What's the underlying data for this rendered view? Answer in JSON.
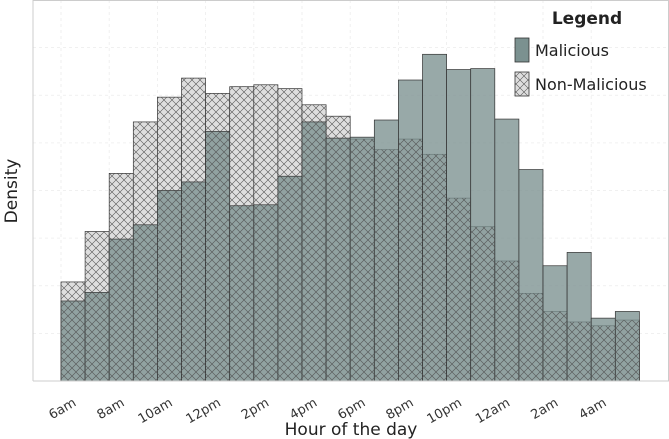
{
  "chart_data": {
    "type": "bar",
    "xlabel": "Hour of the day",
    "ylabel": "Density",
    "ylim": [
      0,
      0.04
    ],
    "grid": true,
    "legend_position": "top-right",
    "categories": [
      "6am",
      "7am",
      "8am",
      "9am",
      "10am",
      "11am",
      "12pm",
      "1pm",
      "2pm",
      "3pm",
      "4pm",
      "5pm",
      "6pm",
      "7pm",
      "8pm",
      "9pm",
      "10pm",
      "11pm",
      "12am",
      "1am",
      "2am",
      "3am",
      "4am",
      "5am"
    ],
    "tick_labels": [
      "6am",
      "8am",
      "10am",
      "12pm",
      "2pm",
      "4pm",
      "6pm",
      "8pm",
      "10pm",
      "12am",
      "2am",
      "4am"
    ],
    "colors": {
      "malicious": "#7b9190",
      "non_malicious": "#dedede",
      "edge": "#333333"
    },
    "legend": {
      "title": "Legend",
      "entries": [
        "Malicious",
        "Non-Malicious"
      ]
    },
    "series": [
      {
        "name": "Non-Malicious",
        "hatch": "cross",
        "values": [
          0.0104,
          0.0157,
          0.0218,
          0.0272,
          0.0298,
          0.0318,
          0.0302,
          0.0309,
          0.0311,
          0.0307,
          0.029,
          0.0278,
          0.0254,
          0.0243,
          0.0254,
          0.0238,
          0.0192,
          0.0162,
          0.0126,
          0.0092,
          0.0073,
          0.0062,
          0.0058,
          0.0064
        ]
      },
      {
        "name": "Malicious",
        "hatch": "none",
        "values": [
          0.0084,
          0.0093,
          0.0149,
          0.0164,
          0.02,
          0.0209,
          0.0262,
          0.0184,
          0.0185,
          0.0215,
          0.0272,
          0.0255,
          0.0256,
          0.0274,
          0.0316,
          0.0343,
          0.0327,
          0.0328,
          0.0275,
          0.0222,
          0.0121,
          0.0135,
          0.0066,
          0.0073
        ]
      }
    ]
  }
}
